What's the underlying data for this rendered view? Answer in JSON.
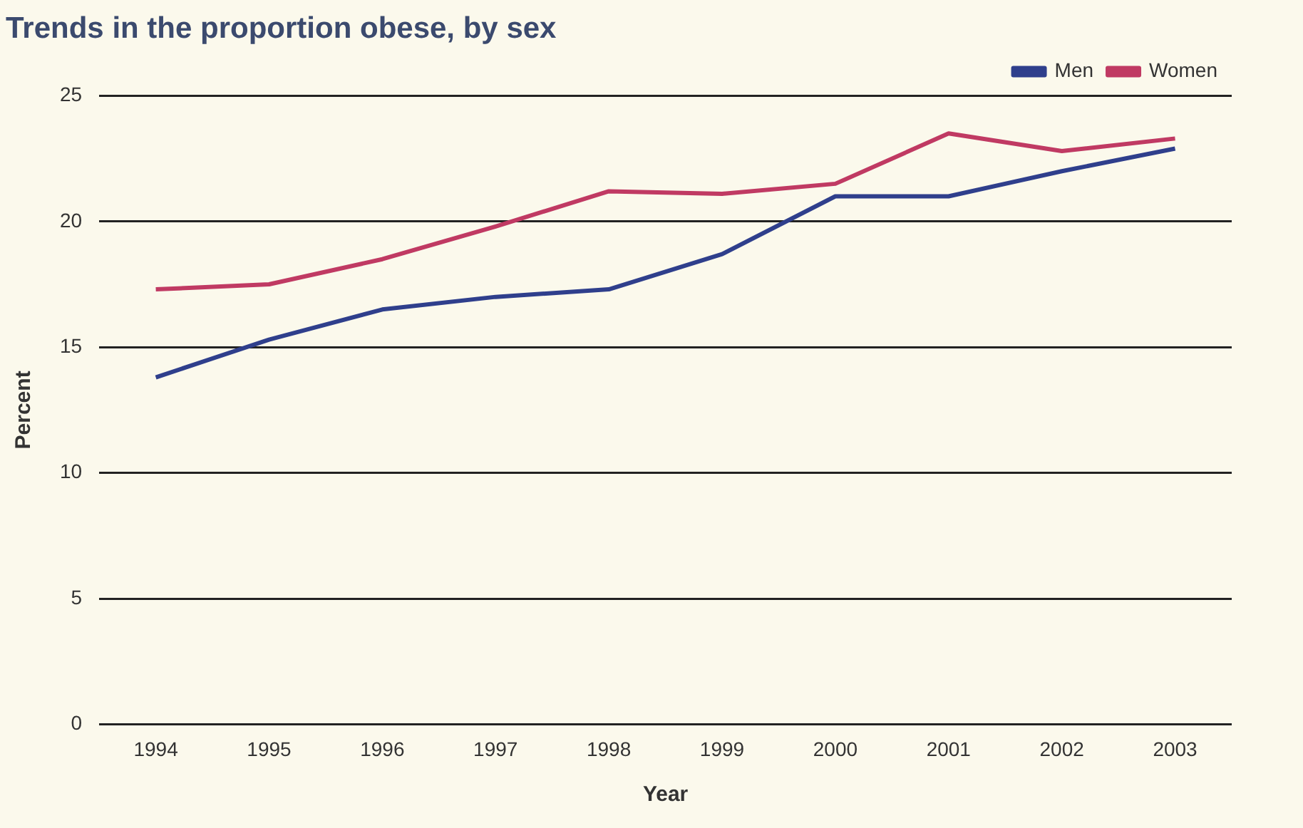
{
  "chart_data": {
    "type": "line",
    "title": "Trends in the proportion obese, by sex",
    "xlabel": "Year",
    "ylabel": "Percent",
    "categories": [
      "1994",
      "1995",
      "1996",
      "1997",
      "1998",
      "1999",
      "2000",
      "2001",
      "2002",
      "2003"
    ],
    "series": [
      {
        "name": "Men",
        "color": "#2f3f8c",
        "values": [
          13.8,
          15.3,
          16.5,
          17.0,
          17.3,
          18.7,
          21.0,
          21.0,
          22.0,
          22.9
        ]
      },
      {
        "name": "Women",
        "color": "#c03a63",
        "values": [
          17.3,
          17.5,
          18.5,
          19.8,
          21.2,
          21.1,
          21.5,
          23.5,
          22.8,
          23.3
        ]
      }
    ],
    "ylim": [
      0,
      25
    ],
    "yticks": [
      0,
      5,
      10,
      15,
      20,
      25
    ],
    "grid": "y",
    "legend": "top right",
    "marker": "none",
    "line_style": "solid"
  }
}
